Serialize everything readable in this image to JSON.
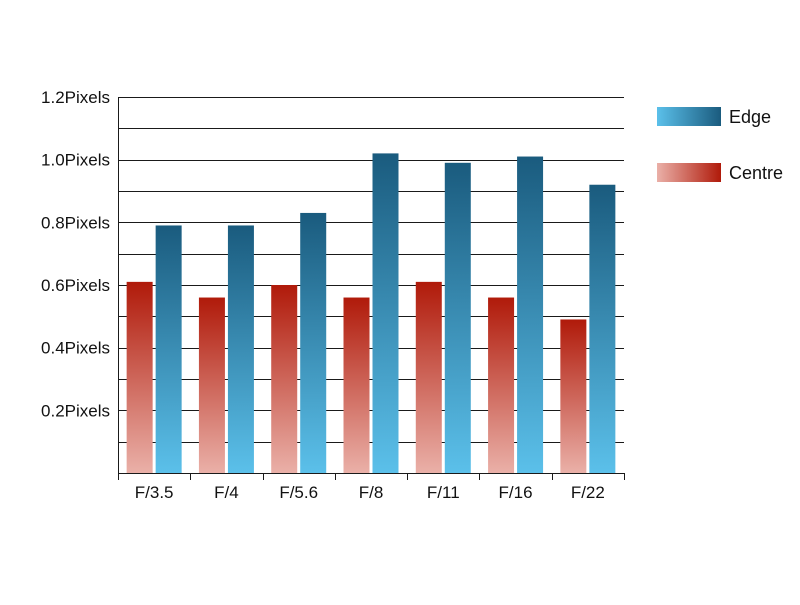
{
  "chart_data": {
    "type": "bar",
    "title": "",
    "xlabel": "",
    "ylabel": "",
    "categories": [
      "F/3.5",
      "F/4",
      "F/5.6",
      "F/8",
      "F/11",
      "F/16",
      "F/22"
    ],
    "series": [
      {
        "name": "Centre",
        "values": [
          0.61,
          0.56,
          0.6,
          0.56,
          0.61,
          0.56,
          0.49
        ],
        "color_light": "#eab0a8",
        "color_dark": "#b01a0a"
      },
      {
        "name": "Edge",
        "values": [
          0.79,
          0.79,
          0.83,
          1.02,
          0.99,
          1.01,
          0.92
        ],
        "color_light": "#5bc0ea",
        "color_dark": "#1a5b7e"
      }
    ],
    "ylim": [
      0,
      1.2
    ],
    "y_ticks": [
      {
        "value": 0.2,
        "label": "0.2Pixels"
      },
      {
        "value": 0.4,
        "label": "0.4Pixels"
      },
      {
        "value": 0.6,
        "label": "0.6Pixels"
      },
      {
        "value": 0.8,
        "label": "0.8Pixels"
      },
      {
        "value": 1.0,
        "label": "1.0Pixels"
      },
      {
        "value": 1.2,
        "label": "1.2Pixels"
      }
    ],
    "y_minor_step": 0.1,
    "grid": true,
    "legend": {
      "placement": "right",
      "order": [
        "Edge",
        "Centre"
      ]
    }
  }
}
